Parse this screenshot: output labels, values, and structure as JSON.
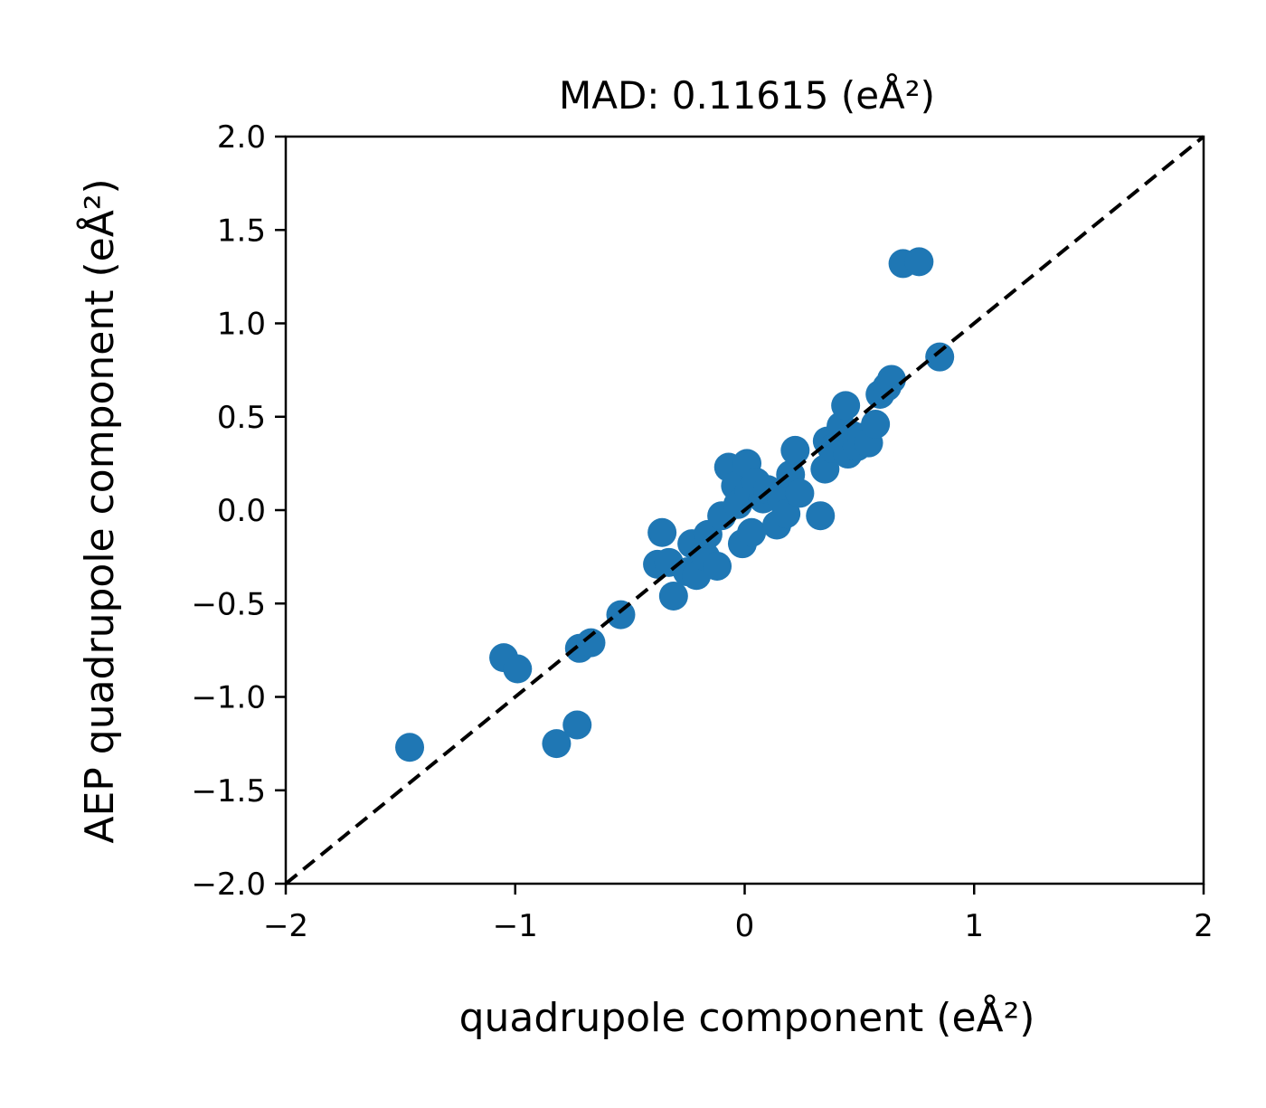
{
  "chart_data": {
    "type": "scatter",
    "title": "MAD: 0.11615 (eÅ²)",
    "xlabel": "quadrupole component (eÅ²)",
    "ylabel": "AEP quadrupole component (eÅ²)",
    "xlim": [
      -2,
      2
    ],
    "ylim": [
      -2,
      2
    ],
    "xticks": [
      -2,
      -1,
      0,
      1,
      2
    ],
    "xtick_labels": [
      "−2",
      "−1",
      "0",
      "1",
      "2"
    ],
    "yticks": [
      -2.0,
      -1.5,
      -1.0,
      -0.5,
      0.0,
      0.5,
      1.0,
      1.5,
      2.0
    ],
    "ytick_labels": [
      "−2.0",
      "−1.5",
      "−1.0",
      "−0.5",
      "0.0",
      "0.5",
      "1.0",
      "1.5",
      "2.0"
    ],
    "grid": false,
    "reference_line": {
      "style": "dashed",
      "color": "#000000",
      "x": [
        -2,
        2
      ],
      "y": [
        -2,
        2
      ]
    },
    "marker_color": "#1f77b4",
    "points": [
      {
        "x": -1.46,
        "y": -1.27
      },
      {
        "x": -1.05,
        "y": -0.79
      },
      {
        "x": -0.99,
        "y": -0.85
      },
      {
        "x": -0.82,
        "y": -1.25
      },
      {
        "x": -0.73,
        "y": -1.15
      },
      {
        "x": -0.72,
        "y": -0.74
      },
      {
        "x": -0.67,
        "y": -0.71
      },
      {
        "x": -0.54,
        "y": -0.56
      },
      {
        "x": -0.38,
        "y": -0.29
      },
      {
        "x": -0.36,
        "y": -0.12
      },
      {
        "x": -0.33,
        "y": -0.28
      },
      {
        "x": -0.31,
        "y": -0.46
      },
      {
        "x": -0.25,
        "y": -0.33
      },
      {
        "x": -0.23,
        "y": -0.18
      },
      {
        "x": -0.21,
        "y": -0.35
      },
      {
        "x": -0.17,
        "y": -0.25
      },
      {
        "x": -0.16,
        "y": -0.13
      },
      {
        "x": -0.12,
        "y": -0.3
      },
      {
        "x": -0.1,
        "y": -0.03
      },
      {
        "x": -0.07,
        "y": 0.23
      },
      {
        "x": -0.04,
        "y": 0.13
      },
      {
        "x": -0.03,
        "y": 0.03
      },
      {
        "x": -0.01,
        "y": -0.18
      },
      {
        "x": 0.01,
        "y": 0.25
      },
      {
        "x": 0.02,
        "y": 0.1
      },
      {
        "x": 0.03,
        "y": -0.12
      },
      {
        "x": 0.05,
        "y": 0.15
      },
      {
        "x": 0.08,
        "y": 0.06
      },
      {
        "x": 0.1,
        "y": 0.11
      },
      {
        "x": 0.14,
        "y": -0.08
      },
      {
        "x": 0.16,
        "y": 0.06
      },
      {
        "x": 0.18,
        "y": -0.02
      },
      {
        "x": 0.2,
        "y": 0.19
      },
      {
        "x": 0.22,
        "y": 0.32
      },
      {
        "x": 0.24,
        "y": 0.09
      },
      {
        "x": 0.33,
        "y": -0.03
      },
      {
        "x": 0.35,
        "y": 0.22
      },
      {
        "x": 0.36,
        "y": 0.37
      },
      {
        "x": 0.38,
        "y": 0.33
      },
      {
        "x": 0.42,
        "y": 0.45
      },
      {
        "x": 0.44,
        "y": 0.56
      },
      {
        "x": 0.45,
        "y": 0.3
      },
      {
        "x": 0.47,
        "y": 0.4
      },
      {
        "x": 0.49,
        "y": 0.34
      },
      {
        "x": 0.51,
        "y": 0.39
      },
      {
        "x": 0.54,
        "y": 0.36
      },
      {
        "x": 0.57,
        "y": 0.46
      },
      {
        "x": 0.59,
        "y": 0.62
      },
      {
        "x": 0.62,
        "y": 0.66
      },
      {
        "x": 0.64,
        "y": 0.7
      },
      {
        "x": 0.69,
        "y": 1.32
      },
      {
        "x": 0.76,
        "y": 1.33
      },
      {
        "x": 0.85,
        "y": 0.82
      }
    ]
  }
}
